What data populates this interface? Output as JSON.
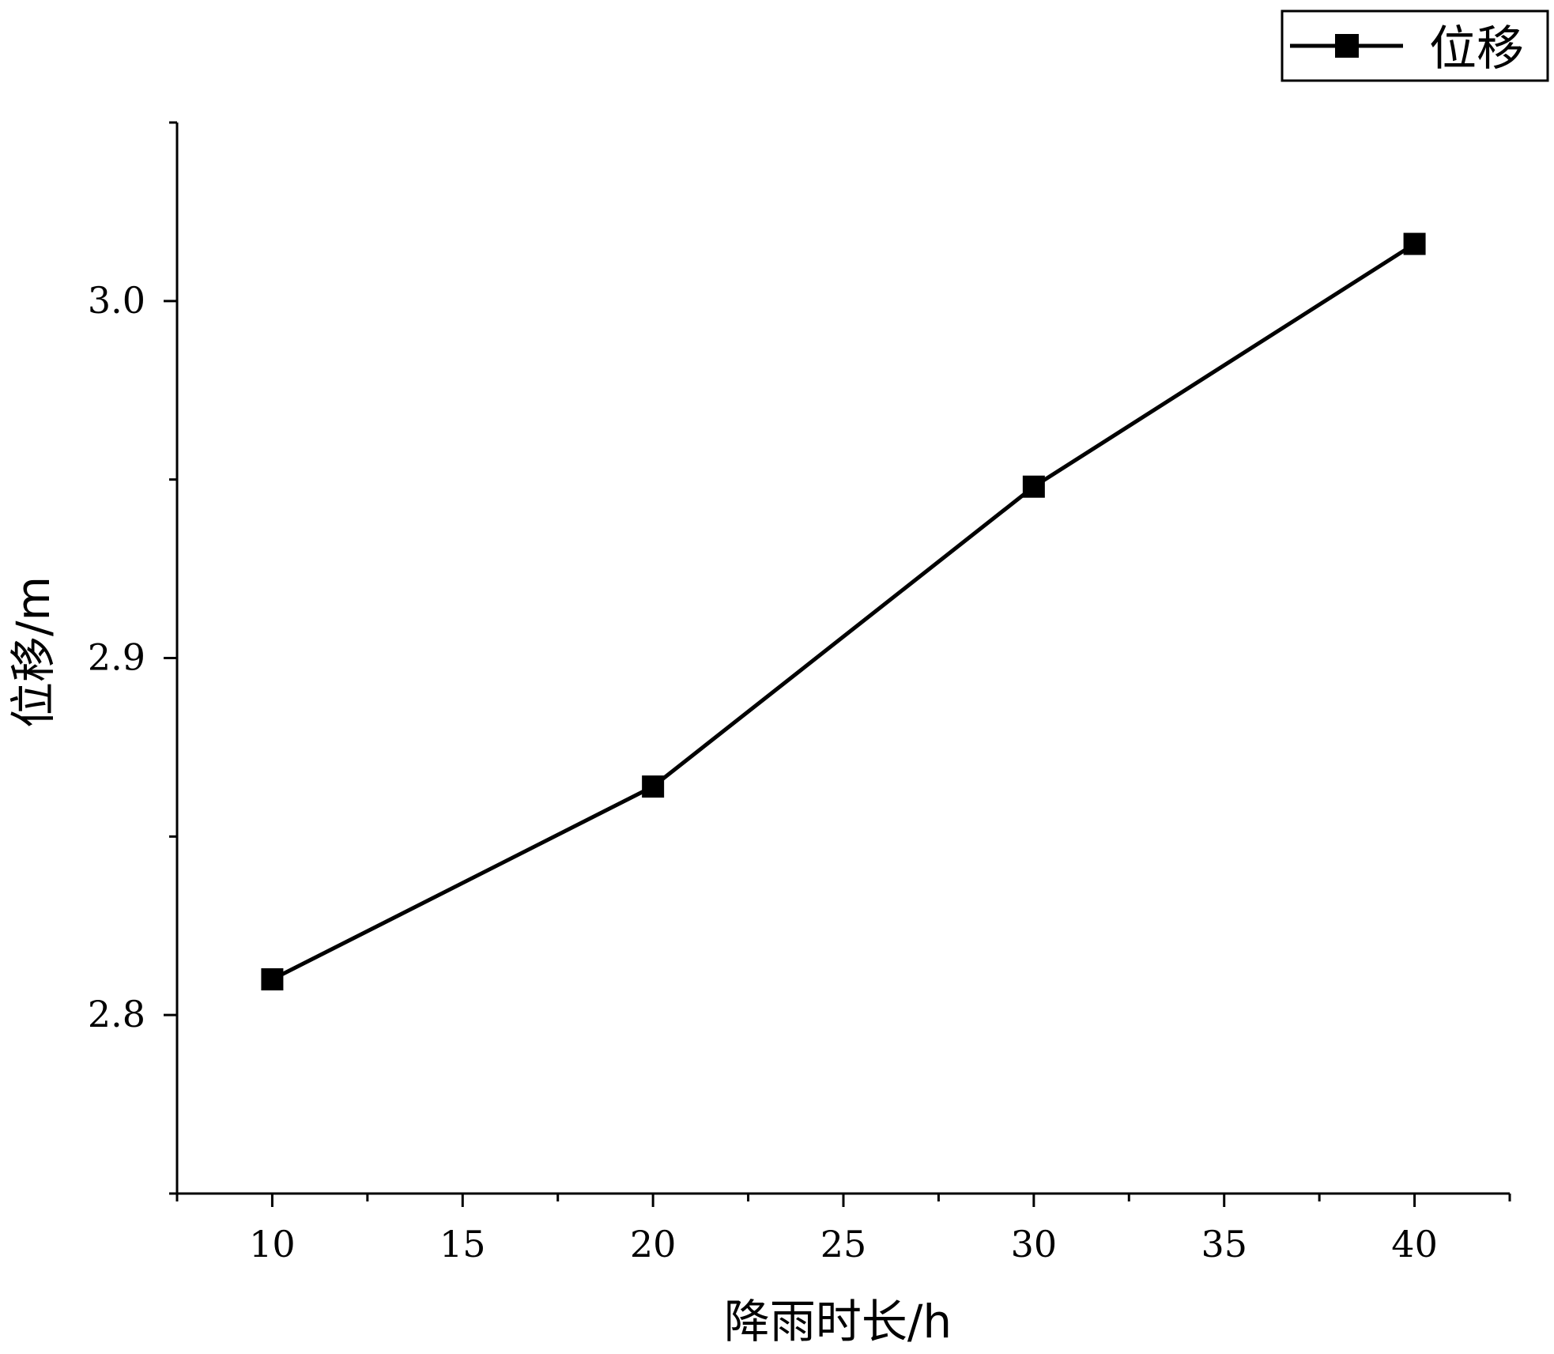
{
  "chart_data": {
    "type": "line",
    "xlabel": "降雨时长/h",
    "ylabel": "位移/m",
    "xlim": [
      7.5,
      42.5
    ],
    "ylim": [
      2.75,
      3.05
    ],
    "x_major_ticks": [
      10,
      15,
      20,
      25,
      30,
      35,
      40
    ],
    "x_minor_ticks": [
      7.5,
      12.5,
      17.5,
      22.5,
      27.5,
      32.5,
      37.5,
      42.5
    ],
    "y_major_ticks": [
      2.8,
      2.9,
      3.0
    ],
    "y_minor_ticks": [
      2.75,
      2.85,
      2.95,
      3.05
    ],
    "x_tick_labels": [
      "10",
      "15",
      "20",
      "25",
      "30",
      "35",
      "40"
    ],
    "y_tick_labels": [
      "2.8",
      "2.9",
      "3.0"
    ],
    "grid": false,
    "legend_position": "top-right",
    "series": [
      {
        "name": "位移",
        "marker": "square",
        "color": "#000000",
        "x": [
          10,
          20,
          30,
          40
        ],
        "y": [
          2.81,
          2.864,
          2.948,
          3.016
        ]
      }
    ]
  }
}
